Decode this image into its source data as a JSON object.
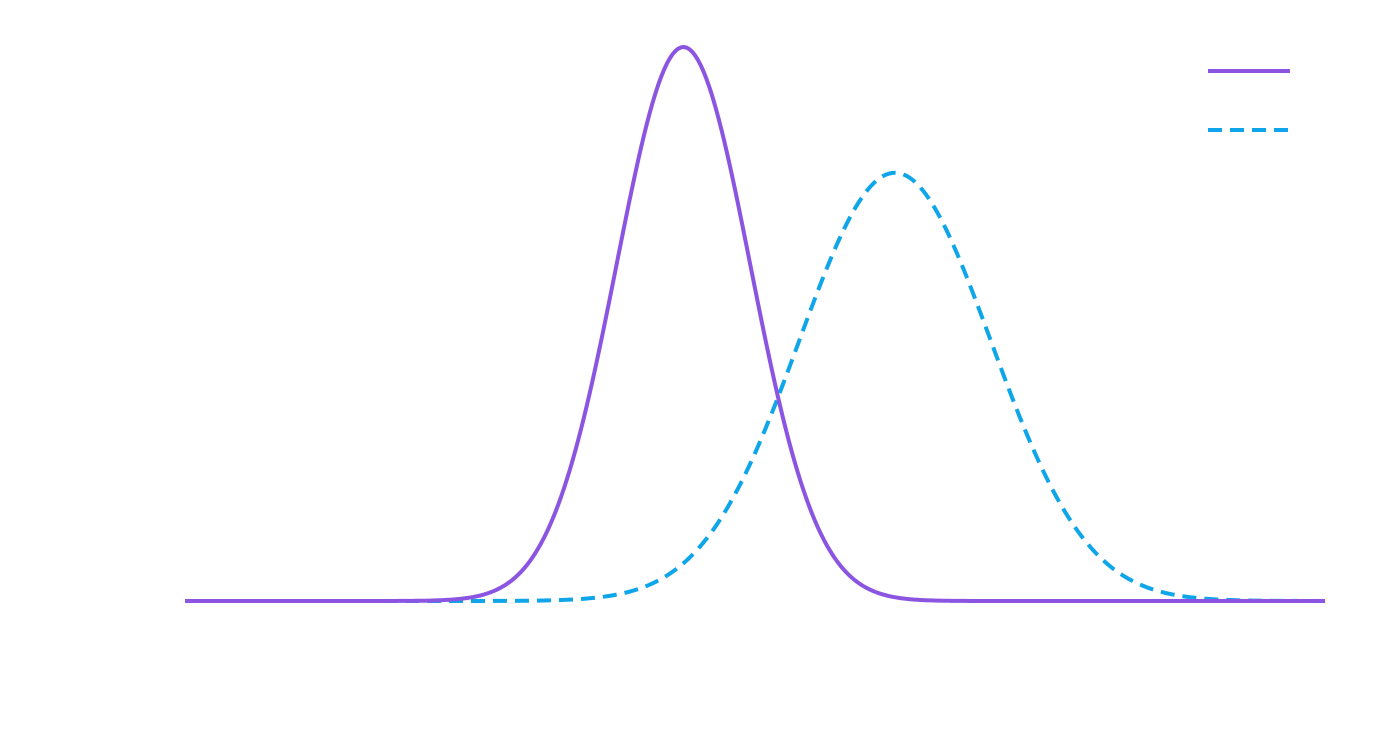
{
  "chart_data": {
    "type": "line",
    "title": "",
    "xlabel": "",
    "ylabel": "",
    "xlim": [
      0,
      1
    ],
    "ylim": [
      0,
      1
    ],
    "grid": false,
    "legend_position": "top-right",
    "series": [
      {
        "style": "solid",
        "color": "#8b55e2",
        "distribution": {
          "shape": "gaussian",
          "mean": 0.4372,
          "sd": 0.0587,
          "peak": 1.0
        }
      },
      {
        "style": "dashed",
        "color": "#0ea5e9",
        "distribution": {
          "shape": "gaussian",
          "mean": 0.6228,
          "sd": 0.0842,
          "peak": 0.773
        }
      }
    ]
  }
}
